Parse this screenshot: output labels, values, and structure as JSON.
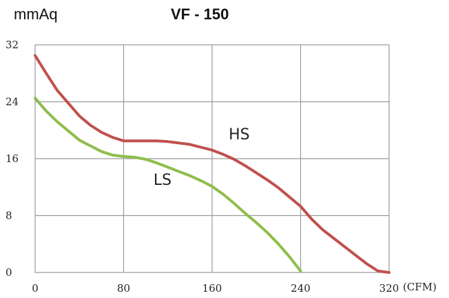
{
  "chart_data": {
    "type": "line",
    "title": "VF - 150",
    "ylabel": "mmAq",
    "xlabel": "(CFM)",
    "xlim": [
      0,
      320
    ],
    "ylim": [
      0,
      32
    ],
    "xticks": [
      0,
      80,
      160,
      240,
      320
    ],
    "yticks": [
      0,
      8,
      16,
      24,
      32
    ],
    "grid": true,
    "series": [
      {
        "name": "HS",
        "color": "#c0504d",
        "x": [
          0,
          10,
          20,
          30,
          40,
          50,
          60,
          70,
          80,
          90,
          100,
          110,
          120,
          130,
          140,
          150,
          160,
          170,
          180,
          190,
          200,
          210,
          220,
          230,
          240,
          250,
          260,
          270,
          280,
          290,
          300,
          310,
          320
        ],
        "y": [
          30.5,
          28.0,
          25.6,
          23.8,
          22.0,
          20.7,
          19.7,
          19.0,
          18.5,
          18.5,
          18.5,
          18.5,
          18.4,
          18.2,
          18.0,
          17.6,
          17.2,
          16.6,
          15.9,
          15.0,
          14.0,
          13.0,
          11.9,
          10.6,
          9.3,
          7.5,
          6.0,
          4.8,
          3.6,
          2.4,
          1.2,
          0.2,
          0.0
        ]
      },
      {
        "name": "LS",
        "color": "#8ebd4a",
        "x": [
          0,
          10,
          20,
          30,
          40,
          50,
          60,
          70,
          80,
          90,
          100,
          110,
          120,
          130,
          140,
          150,
          160,
          170,
          180,
          190,
          200,
          210,
          220,
          230,
          240
        ],
        "y": [
          24.5,
          22.7,
          21.2,
          19.9,
          18.6,
          17.8,
          17.0,
          16.5,
          16.3,
          16.2,
          15.9,
          15.4,
          14.8,
          14.2,
          13.6,
          12.9,
          12.1,
          11.0,
          9.7,
          8.3,
          7.0,
          5.6,
          4.0,
          2.2,
          0.2
        ]
      }
    ]
  }
}
